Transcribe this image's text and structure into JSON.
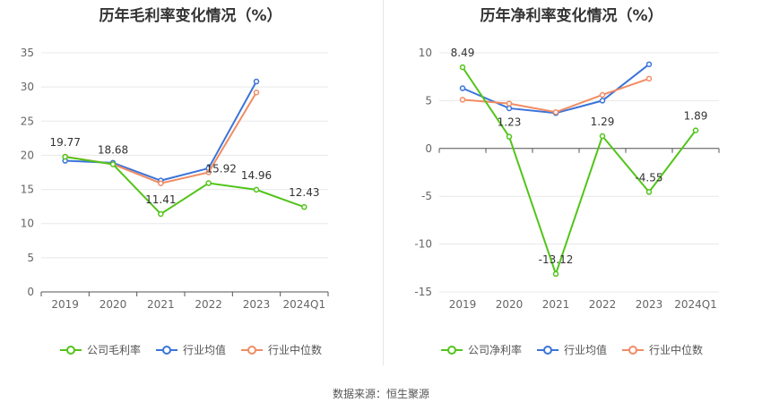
{
  "source": "数据来源：恒生聚源",
  "chart_data": [
    {
      "type": "line",
      "title": "历年毛利率变化情况（%）",
      "categories": [
        "2019",
        "2020",
        "2021",
        "2022",
        "2023",
        "2024Q1"
      ],
      "ylim": [
        0,
        35
      ],
      "yticks": [
        0,
        5,
        10,
        15,
        20,
        25,
        30,
        35
      ],
      "grid": true,
      "legend_position": "bottom",
      "series": [
        {
          "name": "公司毛利率",
          "color": "#52c41a",
          "values": [
            19.77,
            18.68,
            11.41,
            15.92,
            14.96,
            12.43
          ],
          "labels": [
            "19.77",
            "18.68",
            "11.41",
            "15.92",
            "14.96",
            "12.43"
          ]
        },
        {
          "name": "行业均值",
          "color": "#3b74d9",
          "values": [
            19.2,
            18.9,
            16.3,
            18.1,
            30.8,
            null
          ]
        },
        {
          "name": "行业中位数",
          "color": "#f08c64",
          "values": [
            19.8,
            18.7,
            15.9,
            17.5,
            29.2,
            null
          ]
        }
      ]
    },
    {
      "type": "line",
      "title": "历年净利率变化情况（%）",
      "categories": [
        "2019",
        "2020",
        "2021",
        "2022",
        "2023",
        "2024Q1"
      ],
      "ylim": [
        -15,
        10
      ],
      "yticks": [
        -15,
        -10,
        -5,
        0,
        5,
        10
      ],
      "grid": true,
      "legend_position": "bottom",
      "series": [
        {
          "name": "公司净利率",
          "color": "#52c41a",
          "values": [
            8.49,
            1.23,
            -13.12,
            1.29,
            -4.55,
            1.89
          ],
          "labels": [
            "8.49",
            "1.23",
            "-13.12",
            "1.29",
            "-4.55",
            "1.89"
          ]
        },
        {
          "name": "行业均值",
          "color": "#3b74d9",
          "values": [
            6.3,
            4.2,
            3.7,
            5.0,
            8.8,
            null
          ]
        },
        {
          "name": "行业中位数",
          "color": "#f08c64",
          "values": [
            5.1,
            4.7,
            3.8,
            5.6,
            7.3,
            null
          ]
        }
      ]
    }
  ]
}
